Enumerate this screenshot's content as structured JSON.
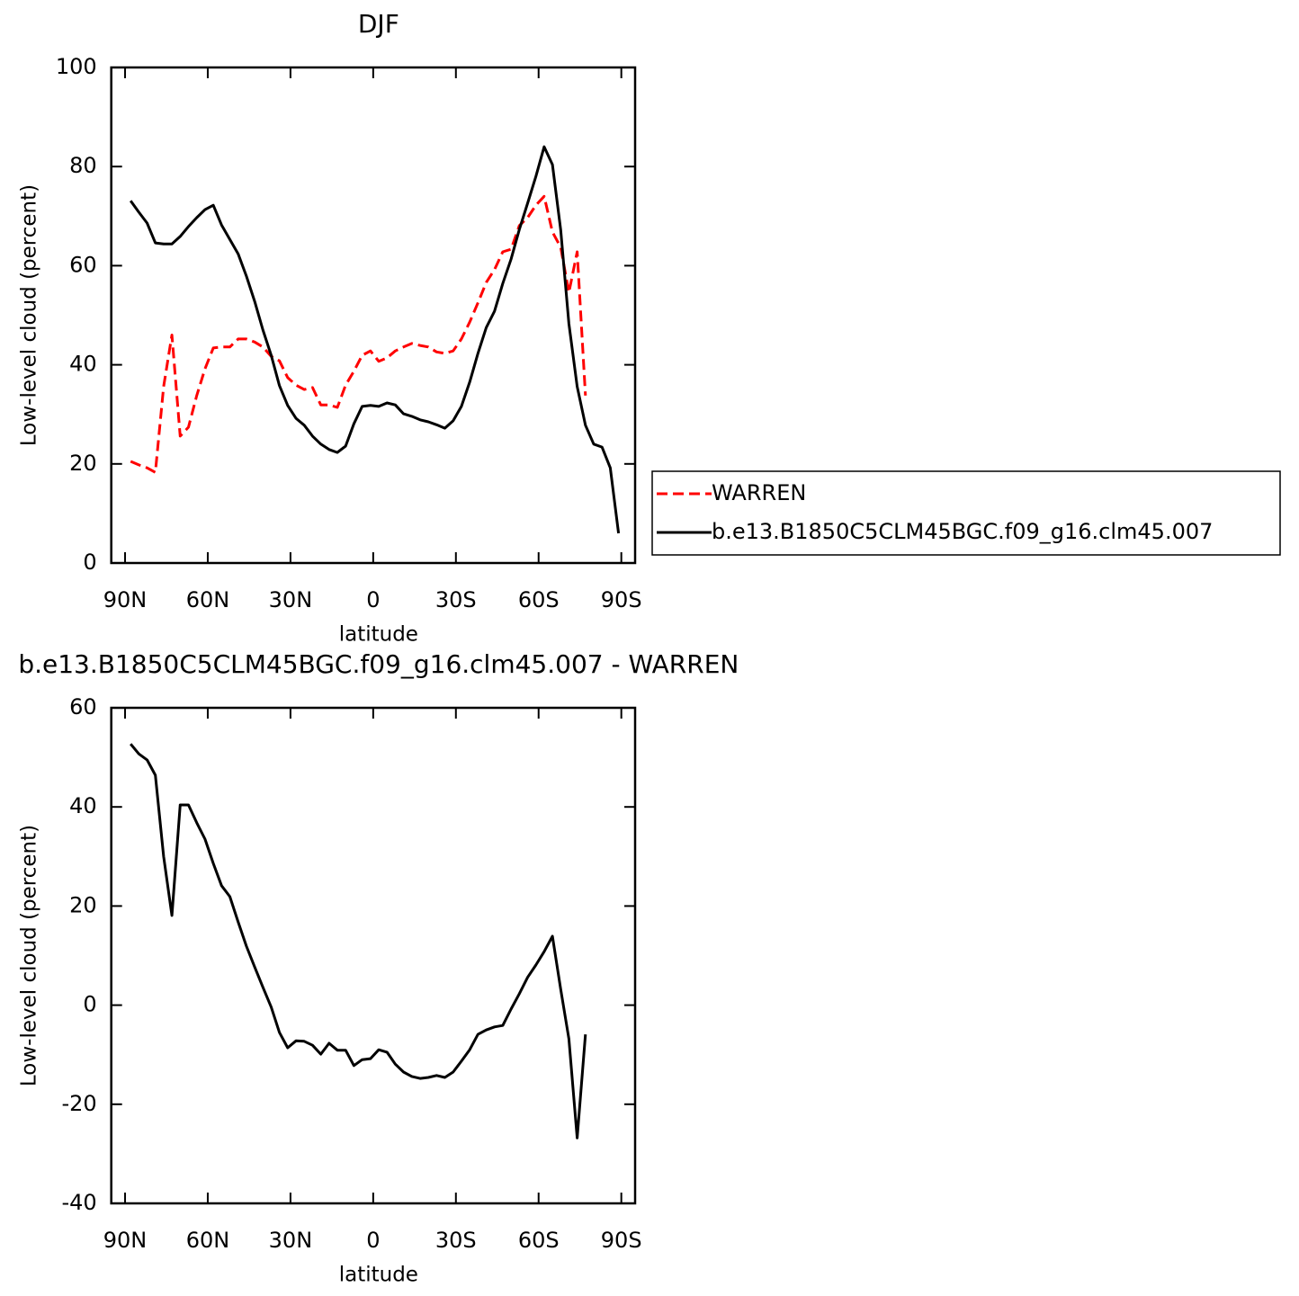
{
  "chart_data": [
    {
      "type": "line",
      "title": "DJF",
      "xlabel": "latitude",
      "ylabel": "Low-level cloud (percent)",
      "x": [
        88,
        85,
        82,
        79,
        76,
        73,
        70,
        67,
        64,
        61,
        58,
        55,
        52,
        49,
        46,
        43,
        40,
        37,
        34,
        31,
        28,
        25,
        22,
        19,
        16,
        13,
        10,
        7,
        4,
        1,
        -2,
        -5,
        -8,
        -11,
        -14,
        -17,
        -20,
        -23,
        -26,
        -29,
        -32,
        -35,
        -38,
        -41,
        -44,
        -47,
        -50,
        -53,
        -56,
        -59,
        -62,
        -65,
        -68,
        -71,
        -74,
        -77,
        -80,
        -83,
        -86,
        -89
      ],
      "xlim": [
        95,
        -95
      ],
      "xticks": [
        {
          "value": 90,
          "label": "90N"
        },
        {
          "value": 60,
          "label": "60N"
        },
        {
          "value": 30,
          "label": "30N"
        },
        0,
        {
          "value": -30,
          "label": "30S"
        },
        {
          "value": -60,
          "label": "60S"
        },
        {
          "value": -90,
          "label": "90S"
        }
      ],
      "ylim": [
        0,
        100
      ],
      "yticks": [
        0,
        20,
        40,
        60,
        80,
        100
      ],
      "legend": "right",
      "series": [
        {
          "name": "WARREN",
          "color": "#ff0000",
          "dashed": true,
          "values": [
            20.5,
            19.8,
            19.2,
            18.3,
            35.6,
            46.0,
            25.6,
            27.4,
            33.8,
            39.2,
            43.4,
            43.6,
            43.6,
            45.2,
            45.2,
            44.6,
            43.6,
            41.7,
            40.8,
            37.4,
            35.9,
            35.0,
            35.4,
            31.9,
            31.9,
            31.4,
            35.9,
            38.7,
            41.9,
            42.8,
            40.7,
            41.4,
            42.8,
            43.6,
            44.3,
            43.9,
            43.6,
            42.6,
            42.3,
            42.8,
            45.2,
            48.6,
            52.5,
            56.6,
            59.2,
            62.8,
            63.3,
            68.1,
            69.7,
            72.2,
            74.0,
            66.8,
            63.7,
            54.6,
            62.8,
            33.8,
            null,
            null,
            null,
            null
          ]
        },
        {
          "name": "b.e13.B1850C5CLM45BGC.f09_g16.clm45.007",
          "color": "#000000",
          "dashed": false,
          "values": [
            73.1,
            70.8,
            68.6,
            64.6,
            64.4,
            64.4,
            65.9,
            67.9,
            69.7,
            71.3,
            72.2,
            68.2,
            65.3,
            62.4,
            57.9,
            52.8,
            47.0,
            41.9,
            35.8,
            31.8,
            29.2,
            27.8,
            25.6,
            24.0,
            22.9,
            22.3,
            23.6,
            28.1,
            31.6,
            31.8,
            31.6,
            32.3,
            31.9,
            30.1,
            29.6,
            28.9,
            28.5,
            27.9,
            27.2,
            28.7,
            31.6,
            36.5,
            42.3,
            47.5,
            50.8,
            56.4,
            61.3,
            67.3,
            72.6,
            78.0,
            84.0,
            80.4,
            67.2,
            48.3,
            35.6,
            27.8,
            24.0,
            23.4,
            19.2,
            6.0
          ]
        }
      ]
    },
    {
      "type": "line",
      "title": "b.e13.B1850C5CLM45BGC.f09_g16.clm45.007 - WARREN",
      "xlabel": "latitude",
      "ylabel": "Low-level cloud (percent)",
      "x": [
        88,
        85,
        82,
        79,
        76,
        73,
        70,
        67,
        64,
        61,
        58,
        55,
        52,
        49,
        46,
        43,
        40,
        37,
        34,
        31,
        28,
        25,
        22,
        19,
        16,
        13,
        10,
        7,
        4,
        1,
        -2,
        -5,
        -8,
        -11,
        -14,
        -17,
        -20,
        -23,
        -26,
        -29,
        -32,
        -35,
        -38,
        -41,
        -44,
        -47,
        -50,
        -53,
        -56,
        -59,
        -62,
        -65,
        -68,
        -71,
        -74,
        -77,
        -80,
        -83,
        -86,
        -89
      ],
      "xlim": [
        95,
        -95
      ],
      "xticks": [
        {
          "value": 90,
          "label": "90N"
        },
        {
          "value": 60,
          "label": "60N"
        },
        {
          "value": 30,
          "label": "30N"
        },
        0,
        {
          "value": -30,
          "label": "30S"
        },
        {
          "value": -60,
          "label": "60S"
        },
        {
          "value": -90,
          "label": "90S"
        }
      ],
      "ylim": [
        -40,
        60
      ],
      "yticks": [
        -40,
        -20,
        0,
        20,
        40,
        60
      ],
      "color": "#000000",
      "values": [
        52.7,
        50.7,
        49.5,
        46.4,
        30.0,
        18.1,
        40.4,
        40.4,
        36.8,
        33.5,
        28.6,
        24.1,
        21.9,
        16.8,
        11.9,
        7.7,
        3.6,
        -0.4,
        -5.5,
        -8.6,
        -7.2,
        -7.3,
        -8.1,
        -9.9,
        -7.7,
        -9.1,
        -9.1,
        -12.2,
        -11.0,
        -10.8,
        -9.0,
        -9.5,
        -11.9,
        -13.5,
        -14.4,
        -14.8,
        -14.6,
        -14.2,
        -14.6,
        -13.5,
        -11.3,
        -9.0,
        -5.9,
        -5.0,
        -4.4,
        -4.1,
        -0.8,
        2.3,
        5.6,
        8.1,
        10.8,
        13.9,
        3.2,
        -6.8,
        -26.8,
        -5.9,
        null,
        null,
        null,
        null
      ]
    }
  ]
}
